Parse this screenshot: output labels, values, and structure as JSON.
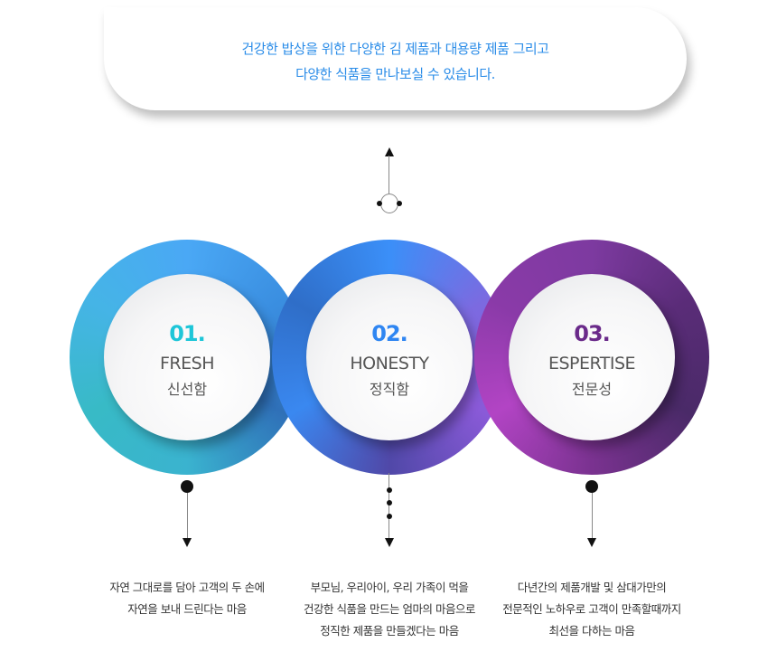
{
  "intro": {
    "line1": "건강한 밥상을 위한 다양한 김 제품과 대용량 제품 그리고",
    "line2": "다양한 식품을 만나보실 수 있습니다."
  },
  "items": [
    {
      "number": "01.",
      "title": "FRESH",
      "korean": "신선함",
      "color": "#1ec6d8",
      "desc": [
        "자연 그대로를 담아 고객의 두 손에",
        "자연을 보내 드린다는 마음"
      ]
    },
    {
      "number": "02.",
      "title": "HONESTY",
      "korean": "정직함",
      "color": "#2f86f2",
      "desc": [
        "부모님, 우리아이, 우리 가족이 먹을",
        "건강한 식품을 만드는 엄마의 마음으로",
        "정직한 제품을 만들겠다는 마음"
      ]
    },
    {
      "number": "03.",
      "title": "ESPERTISE",
      "korean": "전문성",
      "color": "#6a2a8a",
      "desc": [
        "다년간의 제품개발 및 삼대가만의",
        "전문적인 노하우로 고객이 만족할때까지",
        "최선을 다하는 마음"
      ]
    }
  ]
}
